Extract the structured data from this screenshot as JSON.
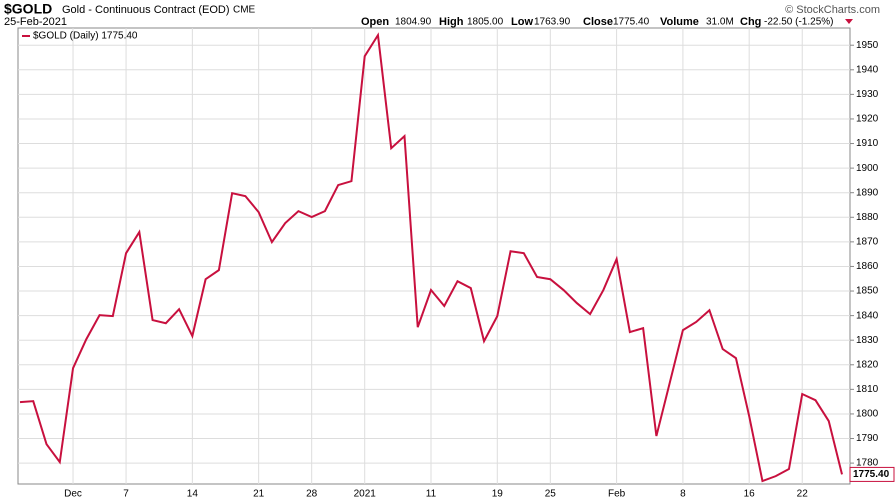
{
  "chart_data": {
    "type": "line",
    "header": {
      "symbol": "$GOLD",
      "name": "Gold - Continuous Contract (EOD)",
      "exchange": "CME",
      "date": "25-Feb-2021",
      "stats": [
        {
          "label": "Open",
          "value": "1804.90"
        },
        {
          "label": "High",
          "value": "1805.00"
        },
        {
          "label": "Low",
          "value": "1763.90"
        },
        {
          "label": "Close",
          "value": "1775.40"
        },
        {
          "label": "Volume",
          "value": "31.0M"
        },
        {
          "label": "Chg",
          "value": "-22.50 (-1.25%)"
        }
      ],
      "credit": "© StockCharts.com"
    },
    "categories": [
      null,
      null,
      null,
      null,
      "Dec",
      null,
      null,
      null,
      "7",
      null,
      null,
      null,
      null,
      "14",
      null,
      null,
      null,
      null,
      "21",
      null,
      null,
      null,
      "28",
      null,
      null,
      null,
      "2021",
      null,
      null,
      null,
      null,
      "11",
      null,
      null,
      null,
      null,
      "19",
      null,
      null,
      null,
      "25",
      null,
      null,
      null,
      null,
      "Feb",
      null,
      null,
      null,
      null,
      "8",
      null,
      null,
      null,
      null,
      "16",
      null,
      null,
      null,
      "22",
      null,
      null,
      null
    ],
    "series": [
      {
        "name": "$GOLD (Daily) 1775.40",
        "color": "#c8103e",
        "values": [
          1804.8,
          1805.2,
          1787.7,
          1780.4,
          1818.6,
          1830.4,
          1840.2,
          1839.8,
          1865.4,
          1874.0,
          1838.2,
          1836.9,
          1842.6,
          1831.7,
          1854.8,
          1858.5,
          1889.8,
          1888.6,
          1882.1,
          1869.9,
          1877.6,
          1882.5,
          1880.1,
          1882.5,
          1893.1,
          1894.7,
          1945.5,
          1954.1,
          1908.1,
          1913.0,
          1835.3,
          1850.4,
          1843.9,
          1854.0,
          1851.2,
          1829.6,
          1839.8,
          1866.2,
          1865.4,
          1855.7,
          1854.8,
          1850.4,
          1845.1,
          1840.6,
          1850.4,
          1863.0,
          1833.3,
          1834.9,
          1791.0,
          1812.5,
          1834.1,
          1837.4,
          1842.2,
          1826.4,
          1822.7,
          1799.1,
          1772.7,
          1774.7,
          1777.6,
          1808.1,
          1805.6,
          1797.1,
          1775.4
        ]
      }
    ],
    "last_label": "1775.40",
    "ylim": [
      1771.5,
      1957
    ],
    "yticks": [
      1780,
      1790,
      1800,
      1810,
      1820,
      1830,
      1840,
      1850,
      1860,
      1870,
      1880,
      1890,
      1900,
      1910,
      1920,
      1930,
      1940,
      1950
    ],
    "grid": true
  }
}
